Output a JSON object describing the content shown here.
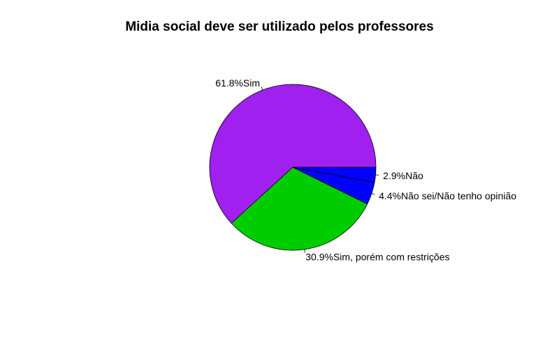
{
  "chart_data": {
    "type": "pie",
    "title": "Midia social deve ser utilizado pelos professores",
    "slices": [
      {
        "label": "61.8%Sim",
        "value": 61.8,
        "color": "#A020F0"
      },
      {
        "label": "30.9%Sim, porém com restrições",
        "value": 30.9,
        "color": "#00CD00"
      },
      {
        "label": "4.4%Não sei/Não tenho opinião",
        "value": 4.4,
        "color": "#0000FF"
      },
      {
        "label": "2.9%Não",
        "value": 2.9,
        "color": "#0000FF"
      }
    ],
    "start_angle_deg": 0,
    "direction": "counterclockwise"
  }
}
